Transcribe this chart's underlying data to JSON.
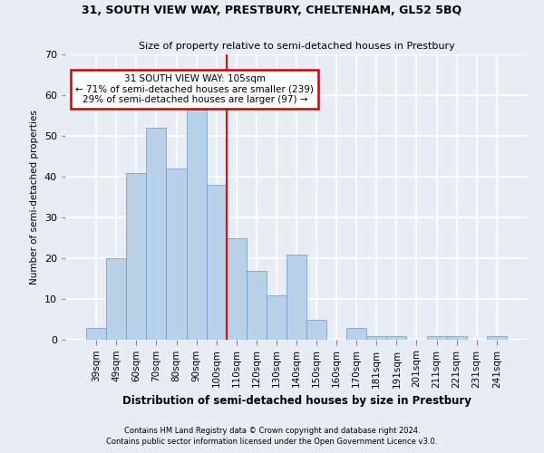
{
  "title1": "31, SOUTH VIEW WAY, PRESTBURY, CHELTENHAM, GL52 5BQ",
  "title2": "Size of property relative to semi-detached houses in Prestbury",
  "xlabel": "Distribution of semi-detached houses by size in Prestbury",
  "ylabel": "Number of semi-detached properties",
  "categories": [
    "39sqm",
    "49sqm",
    "60sqm",
    "70sqm",
    "80sqm",
    "90sqm",
    "100sqm",
    "110sqm",
    "120sqm",
    "130sqm",
    "140sqm",
    "150sqm",
    "160sqm",
    "170sqm",
    "181sqm",
    "191sqm",
    "201sqm",
    "211sqm",
    "221sqm",
    "231sqm",
    "241sqm"
  ],
  "values": [
    3,
    20,
    41,
    52,
    42,
    57,
    38,
    25,
    17,
    11,
    21,
    5,
    0,
    3,
    1,
    1,
    0,
    1,
    1,
    0,
    1
  ],
  "bar_color": "#b8d0e8",
  "bar_edge_color": "#6699cc",
  "background_color": "#e8ecf5",
  "grid_color": "#ffffff",
  "red_line_x": 6.5,
  "annotation_title": "31 SOUTH VIEW WAY: 105sqm",
  "annotation_line1": "← 71% of semi-detached houses are smaller (239)",
  "annotation_line2": "29% of semi-detached houses are larger (97) →",
  "annotation_box_color": "#ffffff",
  "annotation_box_edge": "#cc0000",
  "footnote1": "Contains HM Land Registry data © Crown copyright and database right 2024.",
  "footnote2": "Contains public sector information licensed under the Open Government Licence v3.0.",
  "ylim": [
    0,
    70
  ],
  "yticks": [
    0,
    10,
    20,
    30,
    40,
    50,
    60,
    70
  ]
}
